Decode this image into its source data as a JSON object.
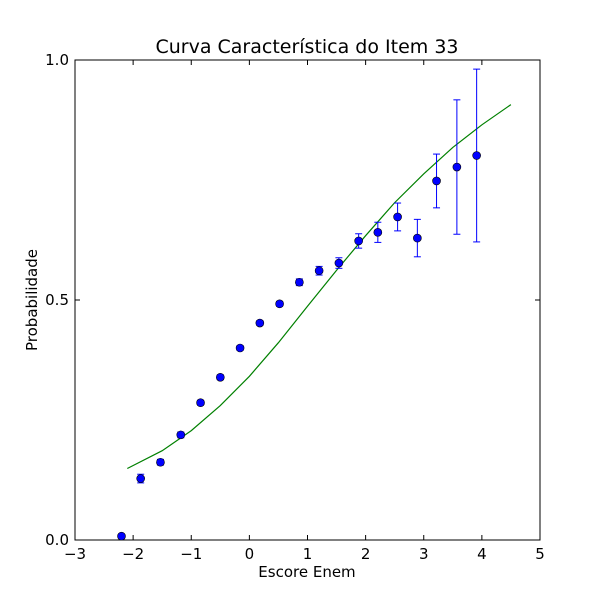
{
  "chart_data": {
    "type": "scatter",
    "title": "Curva Característica do Item 33",
    "xlabel": "Escore Enem",
    "ylabel": "Probabilidade",
    "xlim": [
      -3,
      5
    ],
    "ylim": [
      0.0,
      1.0
    ],
    "x_ticks": [
      -3,
      -2,
      -1,
      0,
      1,
      2,
      3,
      4,
      5
    ],
    "x_tick_labels": [
      "−3",
      "−2",
      "−1",
      "0",
      "1",
      "2",
      "3",
      "4",
      "5"
    ],
    "y_ticks": [
      0.0,
      0.5,
      1.0
    ],
    "y_tick_labels": [
      "0.0",
      "0.5",
      "1.0"
    ],
    "grid": false,
    "colors": {
      "points": "#0000ff",
      "curve": "#008000"
    },
    "series": [
      {
        "type": "errorbar-scatter",
        "points": [
          {
            "x": -2.2,
            "y": 0.008,
            "err": 0.003
          },
          {
            "x": -1.87,
            "y": 0.128,
            "err": 0.009
          },
          {
            "x": -1.53,
            "y": 0.162,
            "err": 0.006
          },
          {
            "x": -1.18,
            "y": 0.219,
            "err": 0.006
          },
          {
            "x": -0.84,
            "y": 0.286,
            "err": 0.005
          },
          {
            "x": -0.5,
            "y": 0.339,
            "err": 0.005
          },
          {
            "x": -0.16,
            "y": 0.4,
            "err": 0.005
          },
          {
            "x": 0.18,
            "y": 0.452,
            "err": 0.005
          },
          {
            "x": 0.52,
            "y": 0.492,
            "err": 0.005
          },
          {
            "x": 0.86,
            "y": 0.537,
            "err": 0.007
          },
          {
            "x": 1.2,
            "y": 0.561,
            "err": 0.009
          },
          {
            "x": 1.54,
            "y": 0.577,
            "err": 0.011
          },
          {
            "x": 1.88,
            "y": 0.623,
            "err": 0.015
          },
          {
            "x": 2.21,
            "y": 0.641,
            "err": 0.021
          },
          {
            "x": 2.55,
            "y": 0.673,
            "err": 0.029
          },
          {
            "x": 2.89,
            "y": 0.629,
            "err": 0.039
          },
          {
            "x": 3.22,
            "y": 0.748,
            "err": 0.056
          },
          {
            "x": 3.57,
            "y": 0.777,
            "err": 0.14
          },
          {
            "x": 3.91,
            "y": 0.801,
            "err": 0.18
          }
        ]
      },
      {
        "type": "line",
        "x": [
          -2.1,
          -1.5,
          -1.0,
          -0.5,
          0.0,
          0.5,
          1.0,
          1.5,
          2.0,
          2.5,
          3.0,
          3.5,
          4.0,
          4.5
        ],
        "y": [
          0.149,
          0.186,
          0.228,
          0.28,
          0.341,
          0.411,
          0.487,
          0.562,
          0.634,
          0.703,
          0.763,
          0.818,
          0.865,
          0.907
        ]
      }
    ]
  }
}
